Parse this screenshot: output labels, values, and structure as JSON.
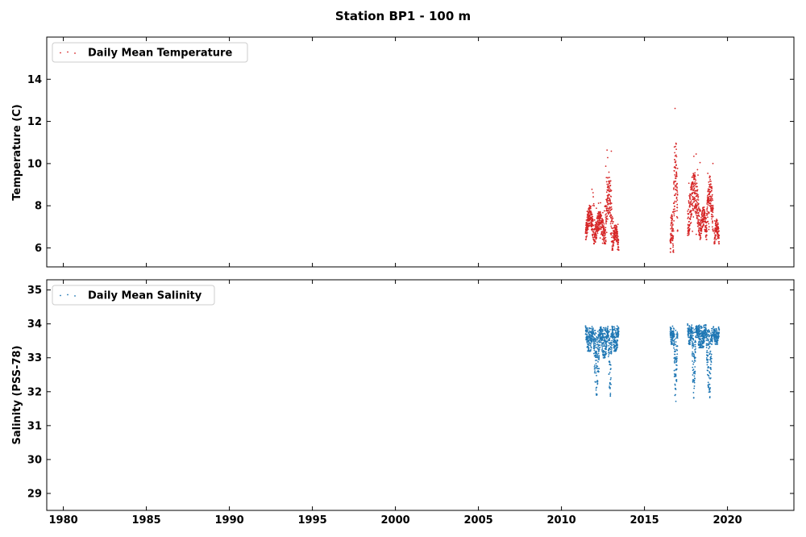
{
  "chart_data": {
    "title": "Station BP1 - 100 m",
    "panels": [
      {
        "type": "scatter",
        "ylabel": "Temperature (C)",
        "ylim": [
          5.1,
          16.0
        ],
        "yticks": [
          6,
          8,
          10,
          12,
          14
        ],
        "legend": {
          "label": "Daily Mean Temperature",
          "placement": "top-left"
        },
        "color": "#d62728",
        "series": [
          {
            "name": "Daily Mean Temperature",
            "clusters": [
              {
                "x_start": 2011.45,
                "x_end": 2011.95,
                "y_min": 6.4,
                "y_max": 8.6,
                "y_peak": 8.8
              },
              {
                "x_start": 2011.95,
                "x_end": 2012.65,
                "y_min": 6.2,
                "y_max": 8.3,
                "y_peak": 8.2
              },
              {
                "x_start": 2012.65,
                "x_end": 2013.05,
                "y_min": 6.3,
                "y_max": 10.9,
                "y_peak": 11.0
              },
              {
                "x_start": 2013.05,
                "x_end": 2013.45,
                "y_min": 5.9,
                "y_max": 7.6,
                "y_peak": 7.5
              },
              {
                "x_start": 2016.55,
                "x_end": 2016.75,
                "y_min": 5.8,
                "y_max": 8.2,
                "y_peak": 8.0
              },
              {
                "x_start": 2016.75,
                "x_end": 2017.0,
                "y_min": 6.8,
                "y_max": 12.8,
                "y_peak": 12.7
              },
              {
                "x_start": 2017.6,
                "x_end": 2018.35,
                "y_min": 6.6,
                "y_max": 10.6,
                "y_peak": 10.5
              },
              {
                "x_start": 2018.35,
                "x_end": 2018.75,
                "y_min": 6.4,
                "y_max": 8.5,
                "y_peak": 8.0
              },
              {
                "x_start": 2018.75,
                "x_end": 2019.15,
                "y_min": 6.8,
                "y_max": 10.4,
                "y_peak": 10.3
              },
              {
                "x_start": 2019.2,
                "x_end": 2019.5,
                "y_min": 6.2,
                "y_max": 7.8,
                "y_peak": 7.4
              }
            ]
          }
        ]
      },
      {
        "type": "scatter",
        "ylabel": "Salinity (PSS-78)",
        "ylim": [
          28.5,
          35.3
        ],
        "yticks": [
          29,
          30,
          31,
          32,
          33,
          34,
          35
        ],
        "legend": {
          "label": "Daily Mean Salinity",
          "placement": "top-left"
        },
        "color": "#1f77b4",
        "series": [
          {
            "name": "Daily Mean Salinity",
            "clusters": [
              {
                "x_start": 2011.45,
                "x_end": 2011.9,
                "y_min": 33.2,
                "y_max": 33.95,
                "y_low": 33.2
              },
              {
                "x_start": 2011.9,
                "x_end": 2012.35,
                "y_min": 31.9,
                "y_max": 33.9,
                "y_low": 31.9
              },
              {
                "x_start": 2012.35,
                "x_end": 2012.8,
                "y_min": 33.0,
                "y_max": 33.95,
                "y_low": 33.0
              },
              {
                "x_start": 2012.8,
                "x_end": 2013.05,
                "y_min": 31.7,
                "y_max": 33.9,
                "y_low": 31.75
              },
              {
                "x_start": 2013.05,
                "x_end": 2013.45,
                "y_min": 33.2,
                "y_max": 33.95,
                "y_low": 33.2
              },
              {
                "x_start": 2016.55,
                "x_end": 2016.75,
                "y_min": 33.4,
                "y_max": 33.95,
                "y_low": 33.4
              },
              {
                "x_start": 2016.75,
                "x_end": 2017.0,
                "y_min": 31.65,
                "y_max": 33.9,
                "y_low": 31.7
              },
              {
                "x_start": 2017.6,
                "x_end": 2017.85,
                "y_min": 33.4,
                "y_max": 34.0,
                "y_low": 33.4
              },
              {
                "x_start": 2017.85,
                "x_end": 2018.1,
                "y_min": 31.8,
                "y_max": 33.9,
                "y_low": 31.8
              },
              {
                "x_start": 2018.1,
                "x_end": 2018.7,
                "y_min": 33.3,
                "y_max": 34.0,
                "y_low": 33.3
              },
              {
                "x_start": 2018.7,
                "x_end": 2019.1,
                "y_min": 31.8,
                "y_max": 33.9,
                "y_low": 31.85
              },
              {
                "x_start": 2019.15,
                "x_end": 2019.5,
                "y_min": 33.4,
                "y_max": 33.95,
                "y_low": 33.4
              }
            ]
          }
        ]
      }
    ],
    "xlim": [
      1979.0,
      2024.0
    ],
    "xticks": [
      1980,
      1985,
      1990,
      1995,
      2000,
      2005,
      2010,
      2015,
      2020
    ],
    "grid": false
  }
}
